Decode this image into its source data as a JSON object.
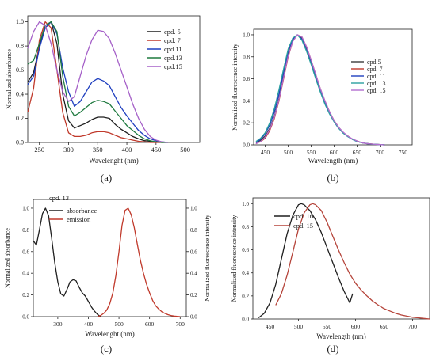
{
  "figure": {
    "panel_labels": [
      "(a)",
      "(b)",
      "(c)",
      "(d)"
    ]
  },
  "chart_data": [
    {
      "panel": "(a)",
      "type": "line",
      "xlabel": "Wavelenght (nm)",
      "ylabel": "Normalized absorbance",
      "xlim": [
        230,
        525
      ],
      "ylim": [
        0,
        1.05
      ],
      "xticks": [
        250,
        300,
        350,
        400,
        450,
        500
      ],
      "yticks": [
        0.0,
        0.2,
        0.4,
        0.6,
        0.8,
        1.0
      ],
      "tick_format": 1,
      "legend_position": "top-right",
      "series": [
        {
          "name": "cpd. 5",
          "color": "#1f1f1f",
          "x": [
            230,
            240,
            250,
            260,
            270,
            280,
            290,
            300,
            310,
            320,
            330,
            340,
            350,
            360,
            370,
            380,
            390,
            400,
            410,
            420,
            430,
            440,
            450,
            460,
            470
          ],
          "y": [
            0.5,
            0.58,
            0.8,
            0.95,
            1.0,
            0.82,
            0.4,
            0.18,
            0.12,
            0.14,
            0.16,
            0.19,
            0.21,
            0.21,
            0.2,
            0.15,
            0.11,
            0.08,
            0.05,
            0.03,
            0.015,
            0.01,
            0.005,
            0.0,
            0.0
          ]
        },
        {
          "name": "cpd. 7",
          "color": "#c0392b",
          "x": [
            230,
            240,
            250,
            260,
            270,
            280,
            290,
            300,
            310,
            320,
            330,
            340,
            350,
            360,
            370,
            380,
            390,
            400,
            410,
            420,
            430,
            440,
            450,
            460
          ],
          "y": [
            0.25,
            0.45,
            0.85,
            1.0,
            0.95,
            0.6,
            0.25,
            0.08,
            0.05,
            0.05,
            0.06,
            0.08,
            0.09,
            0.09,
            0.08,
            0.06,
            0.04,
            0.03,
            0.02,
            0.01,
            0.005,
            0.0,
            0.0,
            0.0
          ]
        },
        {
          "name": "cpd.11",
          "color": "#1f3fbf",
          "x": [
            230,
            240,
            250,
            260,
            270,
            280,
            290,
            300,
            310,
            320,
            330,
            340,
            350,
            360,
            370,
            380,
            390,
            400,
            410,
            420,
            430,
            440,
            450,
            460,
            470
          ],
          "y": [
            0.48,
            0.55,
            0.78,
            0.95,
            1.0,
            0.9,
            0.62,
            0.42,
            0.3,
            0.34,
            0.42,
            0.5,
            0.53,
            0.51,
            0.47,
            0.38,
            0.29,
            0.22,
            0.16,
            0.1,
            0.06,
            0.03,
            0.015,
            0.005,
            0.0
          ]
        },
        {
          "name": "cpd.13",
          "color": "#1f7a3f",
          "x": [
            230,
            240,
            250,
            260,
            270,
            280,
            290,
            300,
            310,
            320,
            330,
            340,
            350,
            360,
            370,
            380,
            390,
            400,
            410,
            420,
            430,
            440,
            450,
            460,
            470
          ],
          "y": [
            0.65,
            0.68,
            0.82,
            0.97,
            1.0,
            0.92,
            0.55,
            0.3,
            0.22,
            0.25,
            0.29,
            0.33,
            0.35,
            0.34,
            0.32,
            0.26,
            0.2,
            0.14,
            0.1,
            0.06,
            0.03,
            0.015,
            0.005,
            0.0,
            0.0
          ]
        },
        {
          "name": "cpd.15",
          "color": "#a560c8",
          "x": [
            230,
            240,
            250,
            260,
            270,
            280,
            290,
            300,
            310,
            320,
            330,
            340,
            350,
            360,
            370,
            380,
            390,
            400,
            410,
            420,
            430,
            440,
            450,
            460,
            470
          ],
          "y": [
            0.78,
            0.92,
            1.0,
            0.97,
            0.82,
            0.6,
            0.42,
            0.34,
            0.38,
            0.55,
            0.72,
            0.85,
            0.93,
            0.92,
            0.86,
            0.74,
            0.6,
            0.46,
            0.32,
            0.2,
            0.11,
            0.05,
            0.02,
            0.005,
            0.0
          ]
        }
      ]
    },
    {
      "panel": "(b)",
      "type": "line",
      "xlabel": "Wavelength (nm)",
      "ylabel": "Normalized fluorescence intensity",
      "xlim": [
        425,
        770
      ],
      "ylim": [
        0,
        1.05
      ],
      "xticks": [
        450,
        500,
        550,
        600,
        650,
        700,
        750
      ],
      "yticks": [
        0.0,
        0.2,
        0.4,
        0.6,
        0.8,
        1.0
      ],
      "tick_format": 1,
      "legend_position": "center-right",
      "series": [
        {
          "name": "cpd.5",
          "color": "#3a3a3a",
          "x": [
            430,
            440,
            450,
            460,
            470,
            480,
            490,
            500,
            510,
            520,
            530,
            540,
            550,
            560,
            570,
            580,
            590,
            600,
            610,
            620,
            630,
            640,
            650,
            660,
            670,
            680,
            690,
            700,
            710
          ],
          "y": [
            0.02,
            0.04,
            0.08,
            0.15,
            0.26,
            0.42,
            0.62,
            0.82,
            0.95,
            1.0,
            0.97,
            0.88,
            0.76,
            0.63,
            0.5,
            0.39,
            0.3,
            0.22,
            0.16,
            0.11,
            0.08,
            0.05,
            0.035,
            0.02,
            0.012,
            0.008,
            0.004,
            0.002,
            0.0
          ]
        },
        {
          "name": "cpd. 7",
          "color": "#c0392b",
          "x": [
            430,
            440,
            450,
            460,
            470,
            480,
            490,
            500,
            510,
            520,
            530,
            540,
            550,
            560,
            570,
            580,
            590,
            600,
            610,
            620,
            630,
            640,
            650,
            660,
            670,
            680,
            690,
            700,
            710
          ],
          "y": [
            0.01,
            0.03,
            0.06,
            0.13,
            0.24,
            0.4,
            0.6,
            0.8,
            0.94,
            1.0,
            0.98,
            0.89,
            0.77,
            0.64,
            0.51,
            0.4,
            0.3,
            0.22,
            0.16,
            0.11,
            0.08,
            0.05,
            0.035,
            0.02,
            0.012,
            0.008,
            0.004,
            0.002,
            0.0
          ]
        },
        {
          "name": "cpd. 11",
          "color": "#1f3fbf",
          "x": [
            430,
            440,
            450,
            460,
            470,
            480,
            490,
            500,
            510,
            520,
            530,
            540,
            550,
            560,
            570,
            580,
            590,
            600,
            610,
            620,
            630,
            640,
            650,
            660,
            670,
            680,
            690,
            700,
            710
          ],
          "y": [
            0.02,
            0.05,
            0.1,
            0.18,
            0.3,
            0.46,
            0.66,
            0.85,
            0.96,
            1.0,
            0.96,
            0.86,
            0.74,
            0.61,
            0.49,
            0.38,
            0.29,
            0.21,
            0.15,
            0.11,
            0.075,
            0.05,
            0.03,
            0.02,
            0.012,
            0.007,
            0.004,
            0.002,
            0.0
          ]
        },
        {
          "name": "cpd. 13",
          "color": "#2aa0a0",
          "x": [
            430,
            440,
            450,
            460,
            470,
            480,
            490,
            500,
            510,
            520,
            530,
            540,
            550,
            560,
            570,
            580,
            590,
            600,
            610,
            620,
            630,
            640,
            650,
            660,
            670,
            680,
            690,
            700,
            710
          ],
          "y": [
            0.03,
            0.06,
            0.11,
            0.2,
            0.33,
            0.5,
            0.69,
            0.87,
            0.97,
            1.0,
            0.95,
            0.85,
            0.73,
            0.6,
            0.48,
            0.37,
            0.28,
            0.21,
            0.15,
            0.105,
            0.075,
            0.05,
            0.03,
            0.02,
            0.012,
            0.007,
            0.004,
            0.002,
            0.0
          ]
        },
        {
          "name": "cpd. 15",
          "color": "#b36fd0",
          "x": [
            430,
            440,
            450,
            460,
            470,
            480,
            490,
            500,
            510,
            520,
            530,
            540,
            550,
            560,
            570,
            580,
            590,
            600,
            610,
            620,
            630,
            640,
            650,
            660,
            670,
            680,
            690,
            700,
            710
          ],
          "y": [
            0.01,
            0.03,
            0.07,
            0.14,
            0.25,
            0.41,
            0.61,
            0.81,
            0.94,
            1.0,
            0.98,
            0.89,
            0.77,
            0.64,
            0.51,
            0.4,
            0.3,
            0.22,
            0.16,
            0.115,
            0.08,
            0.055,
            0.035,
            0.02,
            0.012,
            0.008,
            0.004,
            0.002,
            0.0
          ]
        }
      ]
    },
    {
      "panel": "(c)",
      "type": "line",
      "title": "cpd. 13",
      "xlabel": "Wavelenght  (nm)",
      "ylabel": "Normalized absorbance",
      "ylabel_right": "Normalized fluorescence intensity",
      "xlim": [
        220,
        720
      ],
      "ylim": [
        0,
        1.08
      ],
      "xticks": [
        300,
        400,
        500,
        600,
        700
      ],
      "yticks": [
        0.0,
        0.2,
        0.4,
        0.6,
        0.8,
        1.0
      ],
      "tick_format": 1,
      "legend_position": "top-left",
      "series": [
        {
          "name": "absorbance",
          "color": "#1f1f1f",
          "x": [
            220,
            230,
            240,
            250,
            260,
            270,
            280,
            290,
            300,
            310,
            320,
            330,
            340,
            350,
            360,
            370,
            380,
            390,
            400,
            410,
            420,
            430,
            440
          ],
          "y": [
            0.7,
            0.66,
            0.8,
            0.95,
            1.0,
            0.93,
            0.72,
            0.5,
            0.32,
            0.21,
            0.19,
            0.25,
            0.32,
            0.34,
            0.33,
            0.27,
            0.22,
            0.19,
            0.14,
            0.09,
            0.05,
            0.02,
            0.0
          ]
        },
        {
          "name": "emission",
          "color": "#c0392b",
          "x": [
            430,
            440,
            450,
            460,
            470,
            480,
            490,
            500,
            510,
            520,
            530,
            540,
            550,
            560,
            570,
            580,
            590,
            600,
            610,
            620,
            630,
            640,
            650,
            660,
            670,
            680,
            690,
            700
          ],
          "y": [
            0.0,
            0.01,
            0.03,
            0.06,
            0.12,
            0.22,
            0.38,
            0.6,
            0.84,
            0.98,
            1.0,
            0.94,
            0.82,
            0.67,
            0.52,
            0.4,
            0.3,
            0.22,
            0.15,
            0.1,
            0.07,
            0.045,
            0.03,
            0.018,
            0.01,
            0.005,
            0.002,
            0.0
          ]
        }
      ]
    },
    {
      "panel": "(d)",
      "type": "line",
      "xlabel": "Wavelength (nm)",
      "ylabel": "Normalized fluorescence intensity",
      "xlim": [
        420,
        730
      ],
      "ylim": [
        0,
        1.05
      ],
      "xticks": [
        450,
        500,
        550,
        600,
        650,
        700
      ],
      "yticks": [
        0.0,
        0.2,
        0.4,
        0.6,
        0.8,
        1.0
      ],
      "tick_format": 1,
      "legend_position": "top-left",
      "series": [
        {
          "name": "cpd. 16",
          "color": "#1f1f1f",
          "x": [
            430,
            440,
            450,
            460,
            470,
            480,
            490,
            500,
            505,
            510,
            520,
            530,
            540,
            550,
            560,
            570,
            580,
            590,
            595
          ],
          "y": [
            0.01,
            0.05,
            0.14,
            0.3,
            0.52,
            0.74,
            0.9,
            0.99,
            1.0,
            0.99,
            0.94,
            0.86,
            0.75,
            0.62,
            0.49,
            0.36,
            0.24,
            0.14,
            0.22
          ]
        },
        {
          "name": "cpd. 15",
          "color": "#b5443a",
          "x": [
            460,
            470,
            480,
            490,
            500,
            510,
            520,
            525,
            530,
            540,
            550,
            560,
            570,
            580,
            590,
            600,
            610,
            620,
            630,
            640,
            650,
            660,
            670,
            680,
            690,
            700,
            710,
            720,
            730
          ],
          "y": [
            0.12,
            0.22,
            0.38,
            0.58,
            0.78,
            0.92,
            0.99,
            1.0,
            0.99,
            0.94,
            0.84,
            0.72,
            0.6,
            0.49,
            0.39,
            0.31,
            0.25,
            0.2,
            0.155,
            0.12,
            0.09,
            0.07,
            0.05,
            0.035,
            0.025,
            0.015,
            0.01,
            0.005,
            0.0
          ]
        }
      ]
    }
  ]
}
